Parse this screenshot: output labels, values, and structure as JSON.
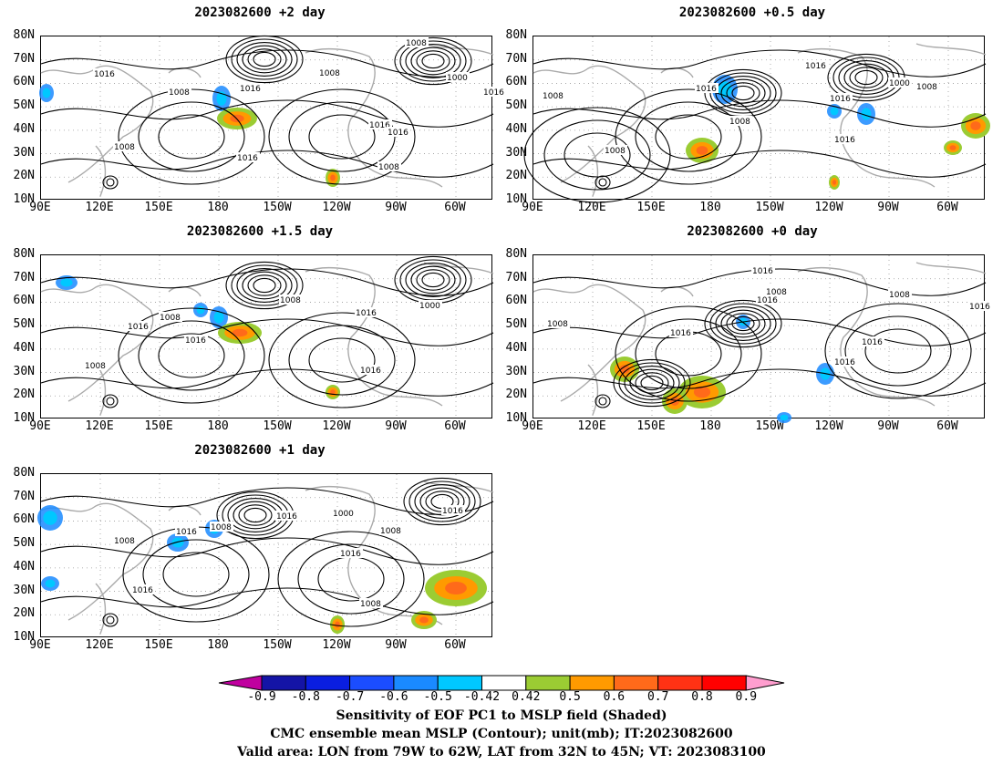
{
  "panels": [
    {
      "title": "2023082600  +2 day",
      "labels": [
        "1008",
        "1008",
        "1016",
        "1016",
        "1008",
        "1000",
        "1016",
        "1016",
        "1016",
        "1008",
        "1016",
        "1008"
      ]
    },
    {
      "title": "2023082600  +0.5 day",
      "labels": [
        "1016",
        "1008",
        "1016",
        "1008",
        "1000",
        "1016",
        "1008",
        "1016",
        "1008"
      ]
    },
    {
      "title": "2023082600  +1.5 day",
      "labels": [
        "1008",
        "1016",
        "1016",
        "1008",
        "1000",
        "1016",
        "1016",
        "1008"
      ]
    },
    {
      "title": "2023082600  +0 day",
      "labels": [
        "1016",
        "1008",
        "1016",
        "1008",
        "1016",
        "1016",
        "1016",
        "1008",
        "1016"
      ]
    },
    {
      "title": "2023082600  +1 day",
      "labels": [
        "1008",
        "1016",
        "1016",
        "1008",
        "1016",
        "1000",
        "1016",
        "1016",
        "1008",
        "1008"
      ]
    }
  ],
  "lat_ticks": [
    "80N",
    "70N",
    "60N",
    "50N",
    "40N",
    "30N",
    "20N",
    "10N"
  ],
  "lon_ticks": [
    "90E",
    "120E",
    "150E",
    "180",
    "150W",
    "120W",
    "90W",
    "60W"
  ],
  "colorbar": {
    "tick_labels": [
      "-0.9",
      "-0.8",
      "-0.7",
      "-0.6",
      "-0.5",
      "-0.42",
      "0.42",
      "0.5",
      "0.6",
      "0.7",
      "0.8",
      "0.9"
    ],
    "colors": [
      "#c0009f",
      "#1414a6",
      "#0a1ee0",
      "#1b4dff",
      "#1a8aff",
      "#00c8ff",
      "#ffffff",
      "#9bcc33",
      "#ff9a00",
      "#ff6a1a",
      "#ff3214",
      "#ff0000",
      "#ff9ecf"
    ]
  },
  "caption": {
    "line1": "Sensitivity of EOF PC1 to MSLP field (Shaded)",
    "line2": "CMC ensemble mean MSLP (Contour); unit(mb); IT:2023082600",
    "line3": "Valid area: LON from 79W to 62W, LAT from 32N to 45N; VT: 2023083100"
  }
}
